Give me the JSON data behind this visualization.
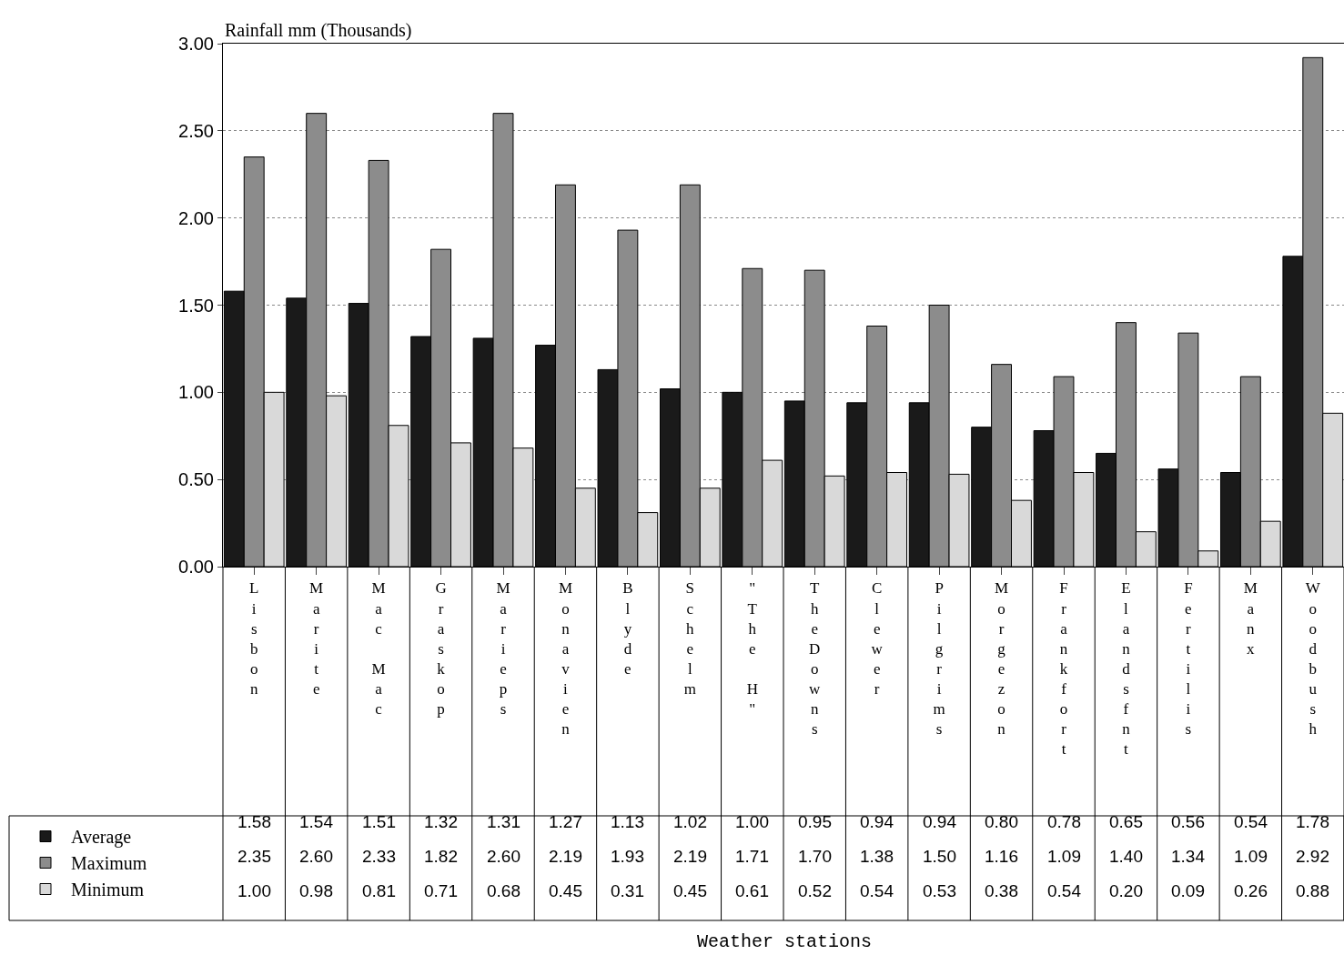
{
  "chart_data": {
    "type": "bar",
    "ylabel": "Rainfall mm (Thousands)",
    "annotations": [
      "Weather stations"
    ],
    "categories": [
      "Lisbon",
      "Marite",
      "Mac Mac",
      "Graskop",
      "Marieps",
      "Monavien",
      "Blyde",
      "Schelm",
      "\"The H\"",
      "TheDowns",
      "Clewer",
      "Pilgrims",
      "Morgezon",
      "Frankfort",
      "Elandsfnt",
      "Fertilis",
      "Manx",
      "Woodbush"
    ],
    "series": [
      {
        "name": "Average",
        "color": "#1a1a1a",
        "values": [
          1.58,
          1.54,
          1.51,
          1.32,
          1.31,
          1.27,
          1.13,
          1.02,
          1.0,
          0.95,
          0.94,
          0.94,
          0.8,
          0.78,
          0.65,
          0.56,
          0.54,
          1.78
        ],
        "value_labels": [
          "1.58",
          "1.54",
          "1.51",
          "1.32",
          "1.31",
          "1.27",
          "1.13",
          "1.02",
          "1.00",
          "0.95",
          "0.94",
          "0.94",
          "0.80",
          "0.78",
          "0.65",
          "0.56",
          "0.54",
          "1.78"
        ]
      },
      {
        "name": "Maximum",
        "color": "#8c8c8c",
        "values": [
          2.35,
          2.6,
          2.33,
          1.82,
          2.6,
          2.19,
          1.93,
          2.19,
          1.71,
          1.7,
          1.38,
          1.5,
          1.16,
          1.09,
          1.4,
          1.34,
          1.09,
          2.92
        ],
        "value_labels": [
          "2.35",
          "2.60",
          "2.33",
          "1.82",
          "2.60",
          "2.19",
          "1.93",
          "2.19",
          "1.71",
          "1.70",
          "1.38",
          "1.50",
          "1.16",
          "1.09",
          "1.40",
          "1.34",
          "1.09",
          "2.92"
        ]
      },
      {
        "name": "Minimum",
        "color": "#d9d9d9",
        "values": [
          1.0,
          0.98,
          0.81,
          0.71,
          0.68,
          0.45,
          0.31,
          0.45,
          0.61,
          0.52,
          0.54,
          0.53,
          0.38,
          0.54,
          0.2,
          0.09,
          0.26,
          0.88
        ],
        "value_labels": [
          "1.00",
          "0.98",
          "0.81",
          "0.71",
          "0.68",
          "0.45",
          "0.31",
          "0.45",
          "0.61",
          "0.52",
          "0.54",
          "0.53",
          "0.38",
          "0.54",
          "0.20",
          "0.09",
          "0.26",
          "0.88"
        ]
      }
    ],
    "ylim": [
      0,
      3
    ],
    "yticks": [
      {
        "value": 0,
        "label": "0.00"
      },
      {
        "value": 0.5,
        "label": "0.50"
      },
      {
        "value": 1,
        "label": "1.00"
      },
      {
        "value": 1.5,
        "label": "1.50"
      },
      {
        "value": 2,
        "label": "2.00"
      },
      {
        "value": 2.5,
        "label": "2.50"
      },
      {
        "value": 3,
        "label": "3.00"
      }
    ],
    "grid": "y",
    "legend": "bottom left"
  }
}
